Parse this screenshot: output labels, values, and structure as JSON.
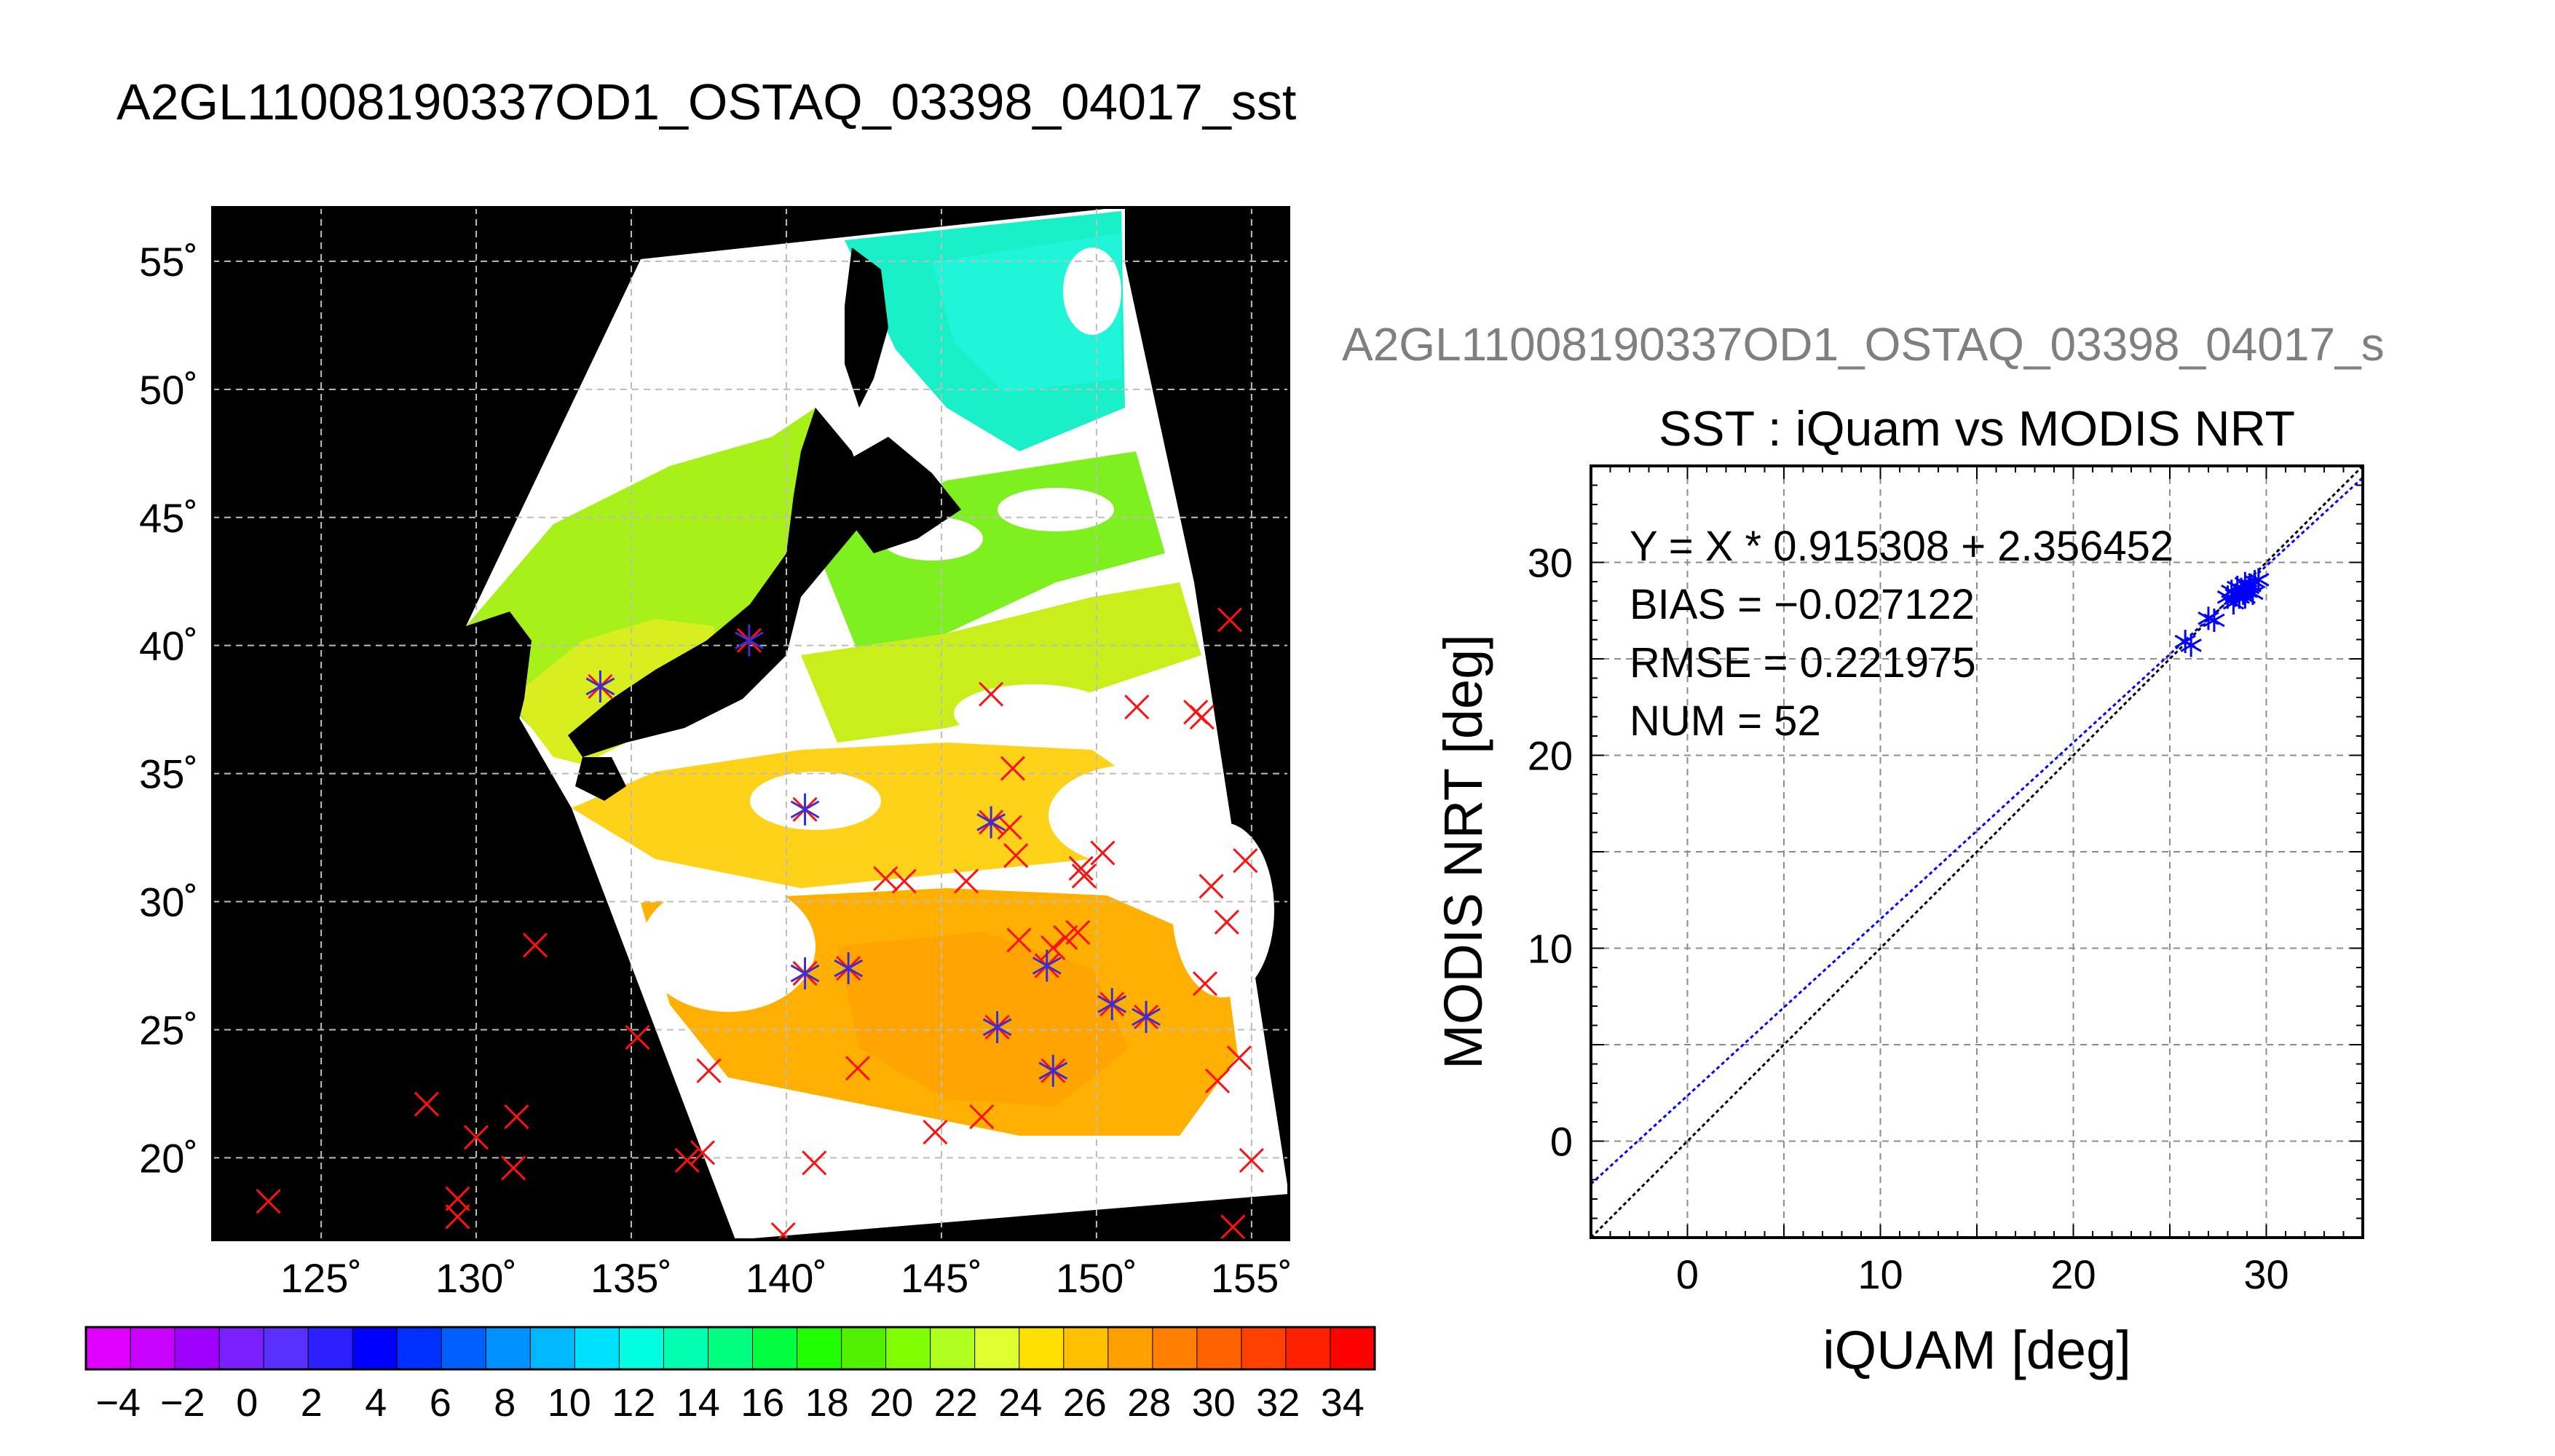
{
  "page": {
    "title": "A2GL11008190337OD1_OSTAQ_03398_04017_sst"
  },
  "map": {
    "lon_ticks": [
      "125˚",
      "130˚",
      "135˚",
      "140˚",
      "145˚",
      "150˚",
      "155˚"
    ],
    "lat_ticks": [
      "55˚",
      "50˚",
      "45˚",
      "40˚",
      "35˚",
      "30˚",
      "25˚",
      "20˚"
    ],
    "colorbar": {
      "labels": [
        "−4",
        "−2",
        "0",
        "2",
        "4",
        "6",
        "8",
        "10",
        "12",
        "14",
        "16",
        "18",
        "20",
        "22",
        "24",
        "26",
        "28",
        "30",
        "32",
        "34"
      ],
      "colors": [
        "#e000ff",
        "#c800ff",
        "#a000ff",
        "#7a20ff",
        "#5a30ff",
        "#2a20ff",
        "#0000ff",
        "#0030ff",
        "#0060ff",
        "#0090ff",
        "#00b8ff",
        "#00e0ff",
        "#00ffe0",
        "#00ffb0",
        "#00ff80",
        "#00ff40",
        "#20ff00",
        "#50f000",
        "#80ff00",
        "#b0ff20",
        "#e0ff30",
        "#ffe000",
        "#ffc000",
        "#ffa000",
        "#ff8000",
        "#ff6000",
        "#ff4000",
        "#ff2000",
        "#ff0000"
      ]
    }
  },
  "scatter": {
    "side_title": "A2GL11008190337OD1_OSTAQ_03398_04017_s",
    "title": "SST : iQuam vs MODIS NRT",
    "xlabel": "iQUAM [deg]",
    "ylabel": "MODIS NRT [deg]",
    "stats": {
      "equation": "Y = X * 0.915308 + 2.356452",
      "bias": "BIAS = −0.027122",
      "rmse": "RMSE = 0.221975",
      "num": "NUM = 52"
    }
  },
  "chart_data": [
    {
      "type": "scatter",
      "title": "SST : iQuam vs MODIS NRT",
      "xlabel": "iQUAM [deg]",
      "ylabel": "MODIS NRT [deg]",
      "xlim": [
        -5,
        35
      ],
      "ylim": [
        -5,
        35
      ],
      "xticks": [
        0,
        10,
        20,
        30
      ],
      "yticks": [
        0,
        10,
        20,
        30
      ],
      "grid": true,
      "fit": {
        "slope": 0.915308,
        "intercept": 2.356452,
        "color": "#0000ff"
      },
      "identity_line": {
        "color": "#000000"
      },
      "points": [
        [
          25.8,
          25.9
        ],
        [
          26.1,
          25.7
        ],
        [
          27.0,
          27.1
        ],
        [
          27.3,
          27.0
        ],
        [
          28.0,
          28.2
        ],
        [
          28.2,
          28.5
        ],
        [
          28.4,
          28.3
        ],
        [
          28.5,
          28.7
        ],
        [
          28.6,
          28.2
        ],
        [
          28.7,
          28.6
        ],
        [
          28.8,
          28.4
        ],
        [
          28.9,
          28.9
        ],
        [
          29.0,
          28.5
        ],
        [
          29.1,
          28.7
        ],
        [
          29.2,
          28.8
        ],
        [
          29.4,
          29.0
        ],
        [
          29.6,
          29.1
        ],
        [
          28.3,
          27.9
        ],
        [
          28.9,
          28.2
        ],
        [
          29.3,
          28.4
        ]
      ],
      "point_color": "#0000ff"
    },
    {
      "type": "heatmap",
      "title": "A2GL11008190337OD1_OSTAQ_03398_04017_sst",
      "xlabel": "",
      "ylabel": "",
      "lon_range": [
        121.5,
        156.2
      ],
      "lat_range": [
        16.8,
        57.1
      ],
      "colorbar_range": [
        -5,
        35
      ],
      "colorbar_ticks": [
        -4,
        -2,
        0,
        2,
        4,
        6,
        8,
        10,
        12,
        14,
        16,
        18,
        20,
        22,
        24,
        26,
        28,
        30,
        32,
        34
      ],
      "matched_points": [
        [
          134.0,
          38.4
        ],
        [
          138.8,
          40.2
        ],
        [
          140.6,
          33.6
        ],
        [
          146.6,
          33.1
        ],
        [
          140.6,
          27.2
        ],
        [
          142.0,
          27.4
        ],
        [
          146.8,
          25.1
        ],
        [
          148.4,
          27.5
        ],
        [
          148.6,
          23.4
        ],
        [
          150.5,
          26.0
        ],
        [
          151.6,
          25.5
        ]
      ],
      "unmatched_points": [
        [
          123.3,
          18.3
        ],
        [
          128.4,
          22.1
        ],
        [
          129.4,
          18.4
        ],
        [
          129.4,
          17.7
        ],
        [
          130.0,
          20.8
        ],
        [
          131.2,
          19.6
        ],
        [
          131.3,
          21.6
        ],
        [
          131.9,
          28.3
        ],
        [
          135.2,
          24.7
        ],
        [
          136.8,
          19.9
        ],
        [
          137.3,
          20.2
        ],
        [
          137.5,
          23.4
        ],
        [
          139.9,
          17.0
        ],
        [
          140.9,
          19.8
        ],
        [
          142.3,
          23.5
        ],
        [
          143.2,
          30.9
        ],
        [
          143.8,
          30.8
        ],
        [
          144.8,
          21.0
        ],
        [
          145.8,
          30.8
        ],
        [
          146.3,
          21.6
        ],
        [
          146.6,
          38.1
        ],
        [
          147.2,
          32.9
        ],
        [
          147.3,
          35.2
        ],
        [
          147.4,
          31.8
        ],
        [
          147.5,
          28.5
        ],
        [
          148.6,
          28.2
        ],
        [
          149.0,
          28.6
        ],
        [
          149.4,
          28.8
        ],
        [
          149.5,
          31.3
        ],
        [
          149.6,
          31.0
        ],
        [
          150.2,
          31.9
        ],
        [
          151.3,
          37.6
        ],
        [
          153.2,
          37.4
        ],
        [
          153.4,
          37.2
        ],
        [
          153.5,
          26.8
        ],
        [
          153.7,
          30.6
        ],
        [
          153.9,
          23.0
        ],
        [
          154.2,
          29.2
        ],
        [
          154.3,
          41.0
        ],
        [
          154.4,
          17.3
        ],
        [
          154.6,
          23.9
        ],
        [
          154.8,
          31.6
        ],
        [
          155.0,
          19.9
        ]
      ]
    }
  ]
}
